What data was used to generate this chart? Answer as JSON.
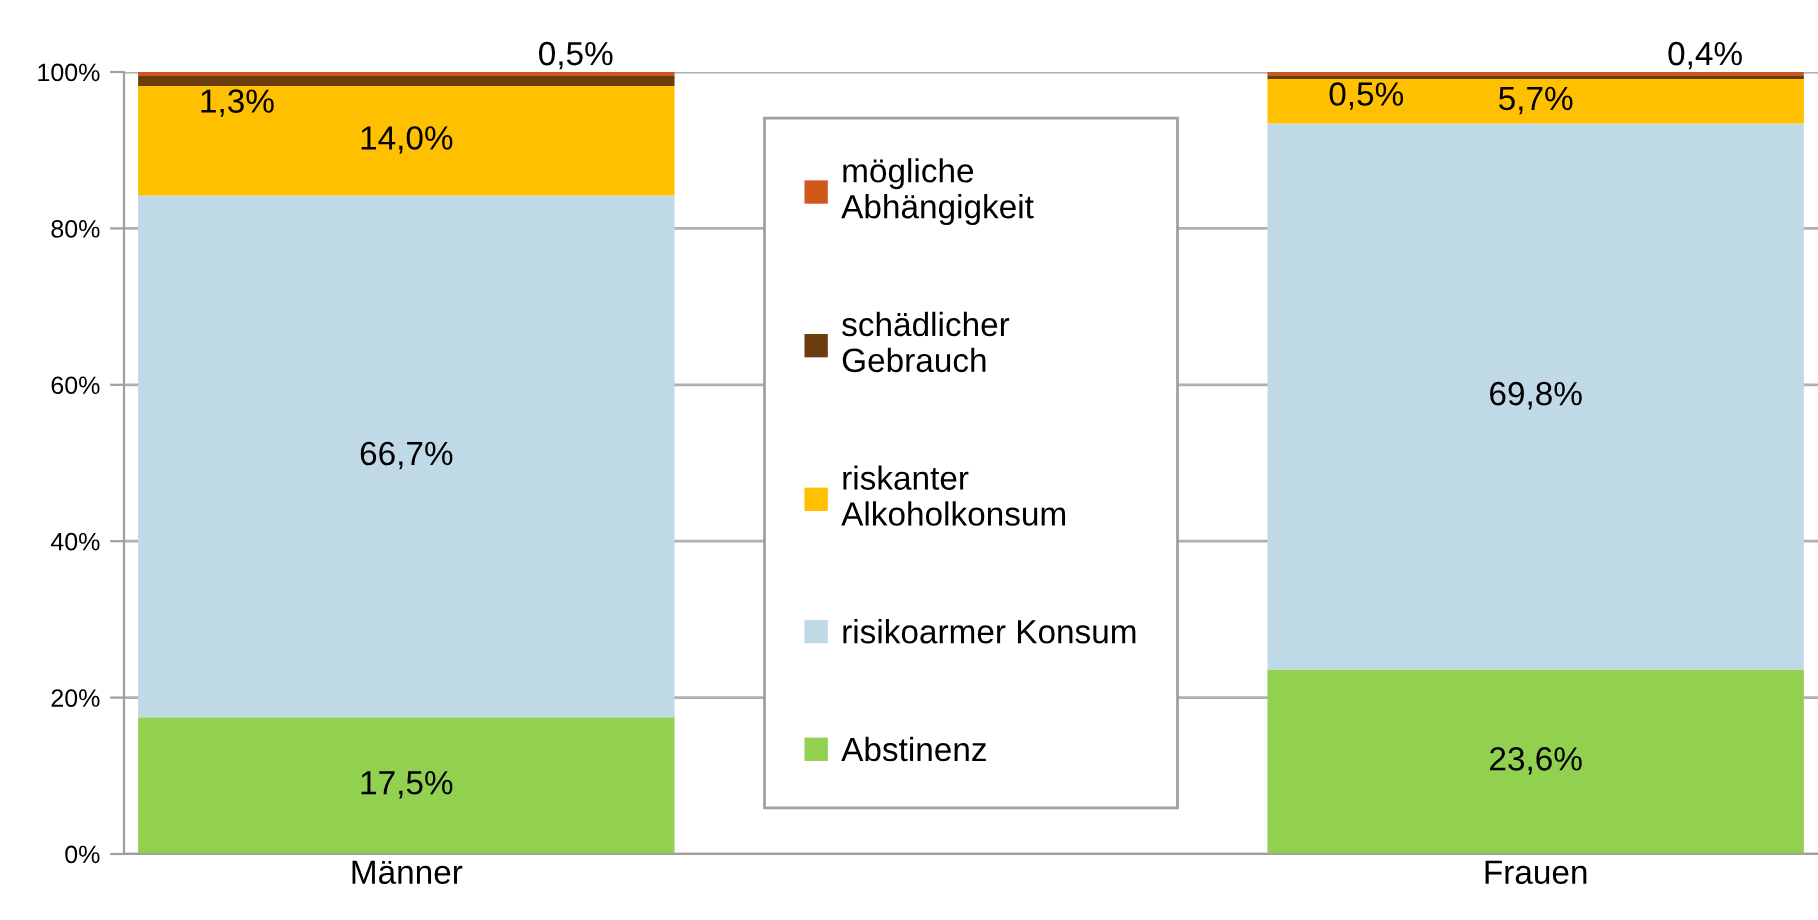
{
  "chart_data": {
    "type": "bar",
    "stacked": true,
    "categories": [
      "Männer",
      null,
      "Frauen"
    ],
    "series": [
      {
        "name": "Abstinenz",
        "color": "#92d050",
        "values": [
          17.5,
          null,
          23.6
        ],
        "value_labels": [
          "17,5%",
          null,
          "23,6%"
        ]
      },
      {
        "name": "risikoarmer Konsum",
        "color": "#c0d9e6",
        "values": [
          66.7,
          null,
          69.8
        ],
        "value_labels": [
          "66,7%",
          null,
          "69,8%"
        ]
      },
      {
        "name": "riskanter Alkoholkonsum",
        "color": "#ffc000",
        "values": [
          14.0,
          null,
          5.7
        ],
        "value_labels": [
          "14,0%",
          null,
          "5,7%"
        ]
      },
      {
        "name": "schädlicher Gebrauch",
        "color": "#6b3d0c",
        "values": [
          1.3,
          null,
          0.5
        ],
        "value_labels": [
          "1,3%",
          null,
          "0,5%"
        ]
      },
      {
        "name": "mögliche Abhängigkeit",
        "color": "#d0561c",
        "values": [
          0.5,
          null,
          0.4
        ],
        "value_labels": [
          "0,5%",
          null,
          "0,4%"
        ]
      }
    ],
    "ylim": [
      0,
      100
    ],
    "yticks": [
      {
        "value": 0,
        "label": "0%"
      },
      {
        "value": 20,
        "label": "20%"
      },
      {
        "value": 40,
        "label": "40%"
      },
      {
        "value": 60,
        "label": "60%"
      },
      {
        "value": 80,
        "label": "80%"
      },
      {
        "value": 100,
        "label": "100%"
      }
    ],
    "grid": "y",
    "legend": "center"
  }
}
